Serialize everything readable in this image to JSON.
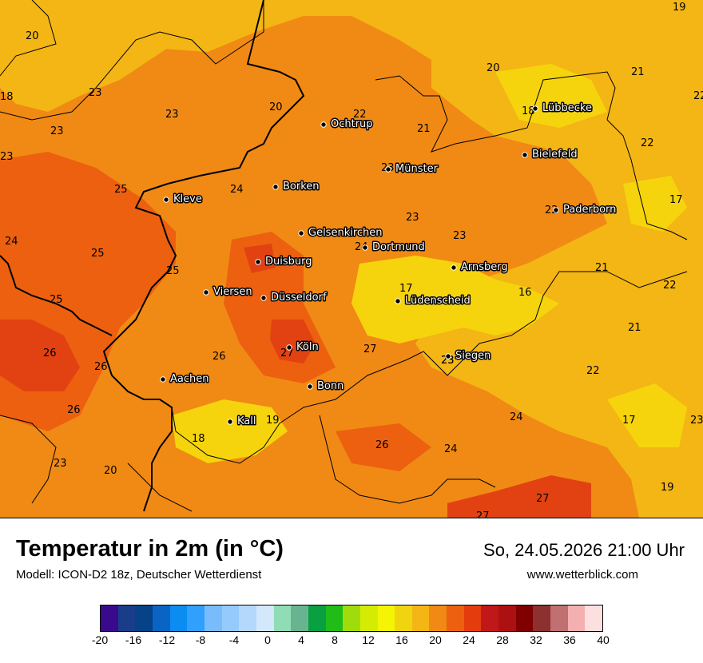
{
  "map": {
    "title": "Temperatur in 2m (in °C)",
    "model": "Modell: ICON-D2 18z, Deutscher Wetterdienst",
    "datetime": "So, 24.05.2026 21:00 Uhr",
    "website": "www.wetterblick.com",
    "cities": [
      {
        "name": "Ochtrup"
      },
      {
        "name": "Lübbecke"
      },
      {
        "name": "Bielefeld"
      },
      {
        "name": "Münster"
      },
      {
        "name": "Borken"
      },
      {
        "name": "Kleve"
      },
      {
        "name": "Paderborn"
      },
      {
        "name": "Gelsenkirchen"
      },
      {
        "name": "Dortmund"
      },
      {
        "name": "Duisburg"
      },
      {
        "name": "Arnsberg"
      },
      {
        "name": "Viersen"
      },
      {
        "name": "Düsseldorf"
      },
      {
        "name": "Lüdenscheid"
      },
      {
        "name": "Köln"
      },
      {
        "name": "Siegen"
      },
      {
        "name": "Aachen"
      },
      {
        "name": "Bonn"
      },
      {
        "name": "Kall"
      }
    ],
    "values": [
      "19",
      "20",
      "20",
      "21",
      "22",
      "18",
      "23",
      "20",
      "23",
      "22",
      "18",
      "23",
      "21",
      "23",
      "22",
      "25",
      "24",
      "17",
      "23",
      "24",
      "23",
      "25",
      "25",
      "21",
      "22",
      "25",
      "17",
      "16",
      "21",
      "26",
      "26",
      "23",
      "22",
      "26",
      "26",
      "24",
      "17",
      "23",
      "19",
      "18",
      "26",
      "24",
      "23",
      "20",
      "19",
      "27",
      "27"
    ],
    "colors": {
      "t16": "#f6d40d",
      "t20": "#f4b614",
      "t22": "#f08a14",
      "t24": "#ec6010",
      "t26": "#e24212",
      "sea": "#f4b614"
    }
  },
  "legend": {
    "ticks": [
      "-20",
      "-16",
      "-12",
      "-8",
      "-4",
      "0",
      "4",
      "8",
      "12",
      "16",
      "20",
      "24",
      "28",
      "32",
      "36",
      "40"
    ],
    "colors": [
      "#3a0a8c",
      "#1a3d8a",
      "#064288",
      "#0a64c4",
      "#0a8cf0",
      "#30a0fc",
      "#78bcfc",
      "#94cafc",
      "#b4d8fc",
      "#d4e8fc",
      "#90dcb4",
      "#68b490",
      "#08a040",
      "#20bc18",
      "#a0dc0c",
      "#d4ec04",
      "#f4f404",
      "#f0d410",
      "#f4b614",
      "#f08a14",
      "#ec6010",
      "#e43c0c",
      "#c01818",
      "#ac1010",
      "#800000",
      "#8c3030",
      "#c07070",
      "#f4b0b0",
      "#fce0e0"
    ]
  }
}
